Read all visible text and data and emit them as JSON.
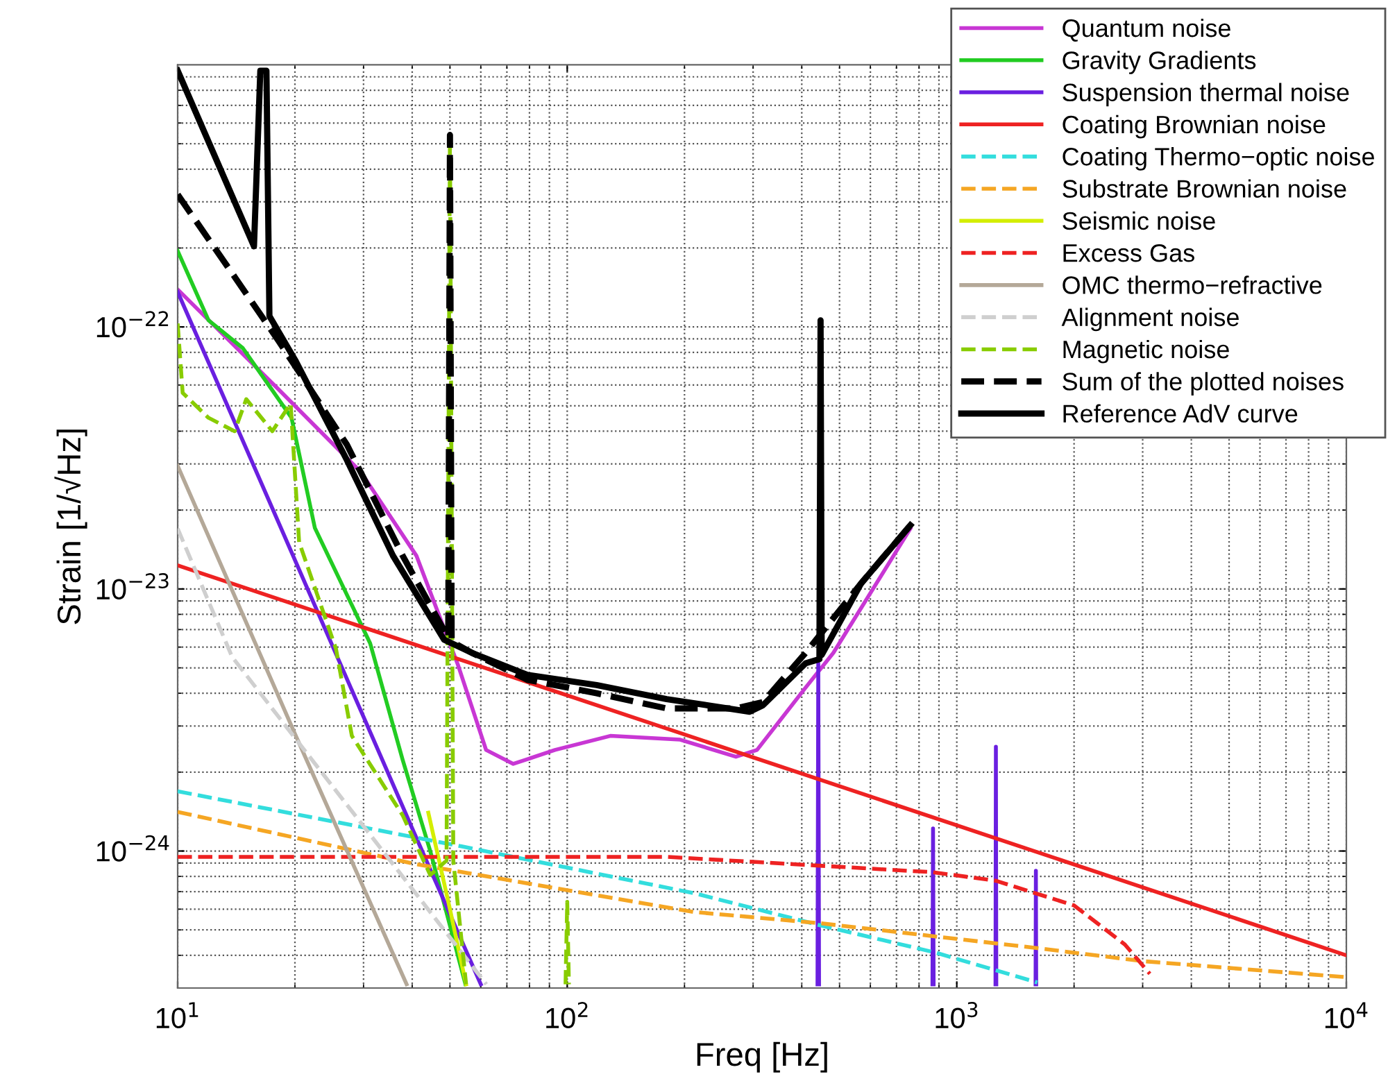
{
  "chart_data": {
    "type": "line",
    "xlabel": "Freq [Hz]",
    "ylabel": "Strain [1/√Hz]",
    "log": "xy",
    "grid": true,
    "legend": "top right",
    "xlim": [
      10,
      10000
    ],
    "ylim": [
      3e-25,
      1e-21
    ],
    "xticks": [
      {
        "value": 10,
        "label": "10$^{1}$"
      },
      {
        "value": 100,
        "label": "10$^{2}$"
      },
      {
        "value": 1000,
        "label": "10$^{3}$"
      },
      {
        "value": 10000,
        "label": "10$^{4}$"
      }
    ],
    "yticks": [
      {
        "value": 1e-24,
        "label": "10$^{−24}$"
      },
      {
        "value": 1e-23,
        "label": "10$^{−23}$"
      },
      {
        "value": 1e-22,
        "label": "10$^{−22}$"
      }
    ],
    "series": [
      {
        "name": "Quantum noise",
        "color": "#c837d4",
        "line_style": "solid",
        "x": [
          10,
          18.1,
          29.5,
          41,
          52.5,
          61.9,
          72.7,
          93,
          129,
          195,
          271,
          307,
          409,
          482,
          760
        ],
        "values": [
          1.39e-22,
          5.8e-23,
          2.8e-23,
          1.34e-23,
          5.1e-24,
          2.43e-24,
          2.15e-24,
          2.43e-24,
          2.75e-24,
          2.66e-24,
          2.29e-24,
          2.43e-24,
          4.2e-24,
          5.7e-24,
          1.7e-23
        ]
      },
      {
        "name": "Gravity Gradients",
        "color": "#22cc22",
        "line_style": "solid",
        "x": [
          10,
          12,
          14.7,
          19.6,
          22.5,
          31.2,
          37.8,
          44.5,
          54.8
        ],
        "values": [
          1.95e-22,
          1.06e-22,
          8.3e-23,
          4.5e-23,
          1.71e-23,
          6.2e-24,
          2.23e-24,
          1e-24,
          3.1e-25
        ]
      },
      {
        "name": "Suspension thermal noise",
        "color": "#6a1fe0",
        "line_style": "solid",
        "x": [
          10,
          15,
          20,
          30,
          40,
          60,
          300,
          439,
          441,
          443,
          600,
          866,
          869,
          872,
          1000,
          1257,
          1260,
          1263,
          1400,
          1593,
          1596,
          1599
        ],
        "values": [
          1.36e-22,
          3.43e-23,
          1.29e-23,
          3.25e-24,
          1.22e-24,
          3.1e-25,
          null,
          3.1e-25,
          5.2e-24,
          3.1e-25,
          null,
          3.1e-25,
          1.22e-24,
          3.1e-25,
          null,
          3.1e-25,
          2.5e-24,
          3.1e-25,
          null,
          3.1e-25,
          8.4e-25,
          3.1e-25
        ]
      },
      {
        "name": "Coating Brownian noise",
        "color": "#ee2222",
        "line_style": "solid",
        "x": [
          10,
          10000
        ],
        "values": [
          1.23e-23,
          4e-25
        ]
      },
      {
        "name": "Coating Thermo−optic noise",
        "color": "#33dddd",
        "line_style": "dashed",
        "x": [
          10,
          53.8,
          212,
          447,
          880,
          1610
        ],
        "values": [
          1.69e-24,
          1.04e-24,
          6.9e-25,
          5.2e-25,
          4.1e-25,
          3.15e-25
        ]
      },
      {
        "name": "Substrate Brownian noise",
        "color": "#f5a623",
        "line_style": "dashed",
        "x": [
          10,
          41,
          212,
          447,
          1610,
          3000,
          10000
        ],
        "values": [
          1.41e-24,
          8.9e-25,
          5.85e-25,
          5.3e-25,
          4.26e-25,
          3.8e-25,
          3.3e-25
        ]
      },
      {
        "name": "Seismic noise",
        "color": "#d4ee00",
        "line_style": "solid",
        "x": [
          44,
          50,
          55
        ],
        "values": [
          1.4e-24,
          6e-25,
          3.1e-25
        ]
      },
      {
        "name": "Excess Gas",
        "color": "#ee2222",
        "line_style": "dashed",
        "x": [
          10,
          180,
          869,
          1260,
          2000,
          2700,
          3130
        ],
        "values": [
          9.5e-25,
          9.5e-25,
          8.3e-25,
          7.7e-25,
          6.2e-25,
          4.4e-25,
          3.4e-25
        ]
      },
      {
        "name": "OMC thermo−refractive",
        "color": "#b4a898",
        "line_style": "solid",
        "x": [
          10,
          20,
          38.7
        ],
        "values": [
          2.95e-23,
          2.8e-24,
          3.1e-25
        ]
      },
      {
        "name": "Alignment noise",
        "color": "#cfcfcf",
        "line_style": "dashed",
        "x": [
          10,
          13.8,
          27.2,
          62
        ],
        "values": [
          1.7e-23,
          5.5e-24,
          1.5e-24,
          3.1e-25
        ]
      },
      {
        "name": "Magnetic noise",
        "color": "#88cc00",
        "line_style": "dashed",
        "x": [
          10,
          10.3,
          12,
          14,
          15,
          17.5,
          19.5,
          20.5,
          22.5,
          25.5,
          28,
          37.8,
          44.5,
          49,
          50,
          51,
          55,
          80,
          99,
          100,
          101
        ],
        "values": [
          1.03e-22,
          5.6e-23,
          4.5e-23,
          4e-23,
          5.3e-23,
          4e-23,
          5.1e-23,
          1.51e-23,
          1.01e-23,
          5.9e-24,
          2.75e-24,
          1.37e-24,
          8.1e-25,
          9.2e-25,
          5.4e-22,
          9.2e-25,
          3.1e-25,
          null,
          3.1e-25,
          6.4e-25,
          3.1e-25
        ]
      },
      {
        "name": "Sum of the plotted noises",
        "color": "#000000",
        "line_style": "dashed",
        "x": [
          10,
          14.1,
          18.1,
          27.2,
          37.8,
          49.5,
          50,
          50.5,
          57,
          79,
          119,
          180,
          271,
          318,
          409,
          568,
          760
        ],
        "values": [
          3.2e-22,
          1.53e-22,
          8.9e-23,
          3.55e-23,
          1.34e-23,
          6.5e-24,
          5.4e-22,
          6.3e-24,
          5.7e-24,
          4.5e-24,
          4e-24,
          3.5e-24,
          3.5e-24,
          3.7e-24,
          5.7e-24,
          1.05e-23,
          1.75e-23
        ]
      },
      {
        "name": "Reference AdV curve",
        "color": "#000000",
        "line_style": "solid",
        "x": [
          10,
          15.7,
          16.3,
          16.9,
          17.2,
          20.1,
          27.2,
          35.7,
          48.3,
          57,
          79,
          119,
          180,
          294,
          318,
          409,
          444,
          447,
          450,
          568,
          760
        ],
        "values": [
          9.5e-22,
          2.03e-22,
          9.5e-22,
          9.5e-22,
          1.1e-22,
          7.4e-23,
          3.1e-23,
          1.34e-23,
          6.4e-24,
          5.7e-24,
          4.7e-24,
          4.3e-24,
          3.8e-24,
          3.4e-24,
          3.6e-24,
          5.2e-24,
          5.4e-24,
          1.06e-22,
          5.6e-24,
          1.05e-23,
          1.75e-23
        ]
      }
    ]
  }
}
